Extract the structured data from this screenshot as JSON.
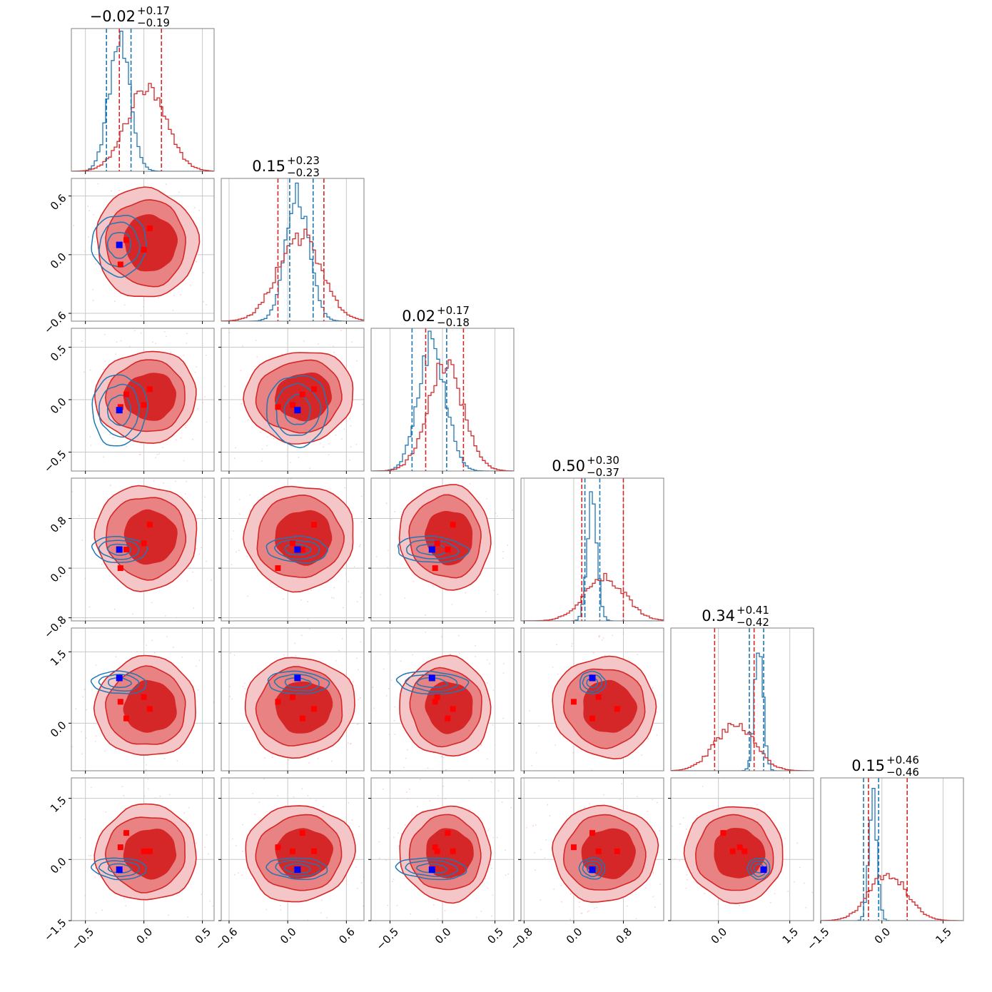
{
  "chart_data": {
    "type": "corner",
    "n_params": 6,
    "grid": true,
    "colors": {
      "red": "#d62728",
      "red_mid": "#e88283",
      "red_light": "#f5c6c7",
      "blue": "#1f77b4",
      "marker_blue": "#0000ff",
      "marker_red": "#ff0000",
      "grid": "#c8c8c8",
      "axes": "#808080"
    },
    "params": [
      {
        "median": "−0.02",
        "plus": "+0.17",
        "minus": "−0.19",
        "range": [
          -0.62,
          0.6
        ],
        "ticks": [
          -0.5,
          0.0,
          0.5
        ],
        "tick_labels": [
          "−0.5",
          "0.0",
          "0.5"
        ],
        "red_peak": 0.02,
        "red_sigma": 0.17,
        "blue_peak": -0.21,
        "blue_sigma": 0.09,
        "red_lines": [
          -0.21,
          0.15
        ],
        "blue_lines": [
          -0.32,
          -0.11
        ]
      },
      {
        "median": "0.15",
        "plus": "+0.23",
        "minus": "−0.23",
        "range": [
          -0.68,
          0.78
        ],
        "ticks": [
          -0.6,
          0.0,
          0.6
        ],
        "tick_labels": [
          "−0.6",
          "0.0",
          "0.6"
        ],
        "red_peak": 0.12,
        "red_sigma": 0.22,
        "blue_peak": 0.1,
        "blue_sigma": 0.12,
        "red_lines": [
          -0.1,
          0.37
        ],
        "blue_lines": [
          0.02,
          0.26
        ]
      },
      {
        "median": "0.02",
        "plus": "+0.17",
        "minus": "−0.18",
        "range": [
          -0.68,
          0.68
        ],
        "ticks": [
          -0.5,
          0.0,
          0.5
        ],
        "tick_labels": [
          "−0.5",
          "0.0",
          "0.5"
        ],
        "red_peak": 0.03,
        "red_sigma": 0.17,
        "blue_peak": -0.1,
        "blue_sigma": 0.13,
        "red_lines": [
          -0.16,
          0.2
        ],
        "blue_lines": [
          -0.29,
          0.04
        ]
      },
      {
        "median": "0.50",
        "plus": "+0.30",
        "minus": "−0.37",
        "range": [
          -0.85,
          1.45
        ],
        "ticks": [
          -0.8,
          0.0,
          0.8
        ],
        "tick_labels": [
          "−0.8",
          "0.0",
          "0.8"
        ],
        "red_peak": 0.5,
        "red_sigma": 0.33,
        "blue_peak": 0.3,
        "blue_sigma": 0.08,
        "red_lines": [
          0.13,
          0.8
        ],
        "blue_lines": [
          0.18,
          0.42
        ]
      },
      {
        "median": "0.34",
        "plus": "+0.41",
        "minus": "−0.42",
        "range": [
          -1.0,
          2.0
        ],
        "ticks": [
          0.0,
          1.5
        ],
        "tick_labels": [
          "0.0",
          "1.5"
        ],
        "red_peak": 0.34,
        "red_sigma": 0.41,
        "blue_peak": 0.85,
        "blue_sigma": 0.09,
        "red_lines": [
          -0.08,
          0.75
        ],
        "blue_lines": [
          0.65,
          0.95
        ]
      },
      {
        "median": "0.15",
        "plus": "+0.46",
        "minus": "−0.46",
        "range": [
          -1.5,
          2.0
        ],
        "ticks": [
          -1.5,
          0.0,
          1.5
        ],
        "tick_labels": [
          "−1.5",
          "0.0",
          "1.5"
        ],
        "red_peak": 0.15,
        "red_sigma": 0.46,
        "blue_peak": -0.22,
        "blue_sigma": 0.1,
        "red_lines": [
          -0.33,
          0.62
        ],
        "blue_lines": [
          -0.45,
          -0.08
        ]
      }
    ],
    "blue_marker": [
      -0.21,
      0.1,
      -0.1,
      0.3,
      0.95,
      -0.25
    ],
    "red_markers": [
      [
        -0.2,
        -0.1,
        -0.07,
        0.0,
        0.45,
        0.3
      ],
      [
        -0.15,
        0.15,
        0.05,
        0.3,
        0.1,
        0.65
      ],
      [
        0.0,
        0.05,
        -0.05,
        0.4,
        0.55,
        0.2
      ],
      [
        0.05,
        0.27,
        0.1,
        0.7,
        0.3,
        0.2
      ]
    ]
  }
}
